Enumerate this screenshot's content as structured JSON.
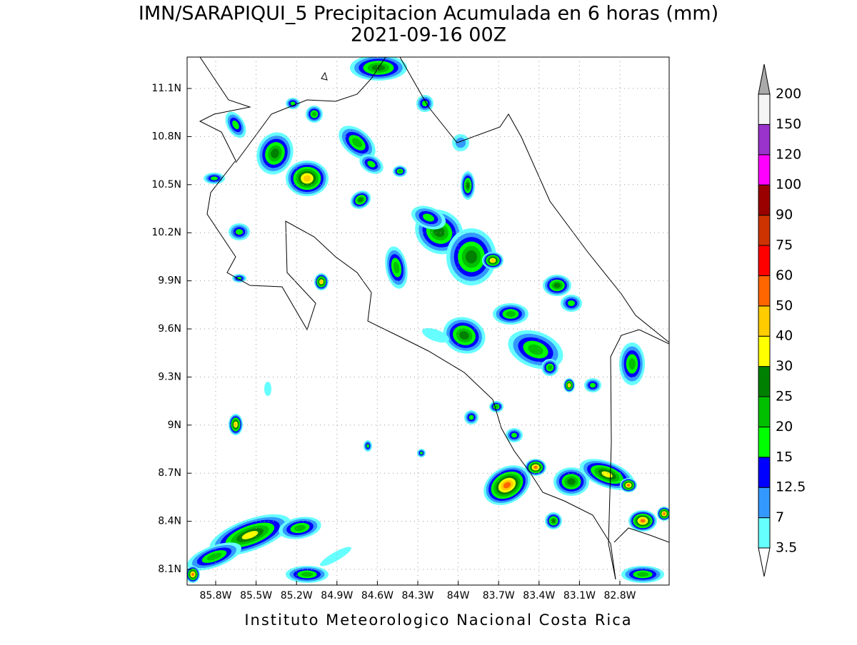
{
  "title": "IMN/SARAPIQUI_5 Precipitacion Acumulada en 6 horas (mm)",
  "subtitle": "2021-09-16 00Z",
  "map": {
    "lat_ticks": [
      "11.1N",
      "10.8N",
      "10.5N",
      "10.2N",
      "9.9N",
      "9.6N",
      "9.3N",
      "9N",
      "8.7N",
      "8.4N",
      "8.1N"
    ],
    "lon_ticks": [
      "85.8W",
      "85.5W",
      "85.2W",
      "84.9W",
      "84.6W",
      "84.3W",
      "84W",
      "83.7W",
      "83.4W",
      "83.1W",
      "82.8W"
    ]
  },
  "colorbar": {
    "levels": [
      3.5,
      7,
      12.5,
      15,
      20,
      25,
      30,
      40,
      50,
      60,
      75,
      90,
      100,
      120,
      150,
      200
    ],
    "colors": [
      "#ffffff",
      "#66ffff",
      "#3399ff",
      "#0000ff",
      "#00ff00",
      "#00c000",
      "#008000",
      "#ffff00",
      "#ffcc00",
      "#ff6600",
      "#ff0000",
      "#cc3300",
      "#990000",
      "#ff00ff",
      "#9933cc",
      "#f5f5f5",
      "#aaaaaa"
    ]
  },
  "footer": "Instituto Meteorologico Nacional Costa Rica"
}
